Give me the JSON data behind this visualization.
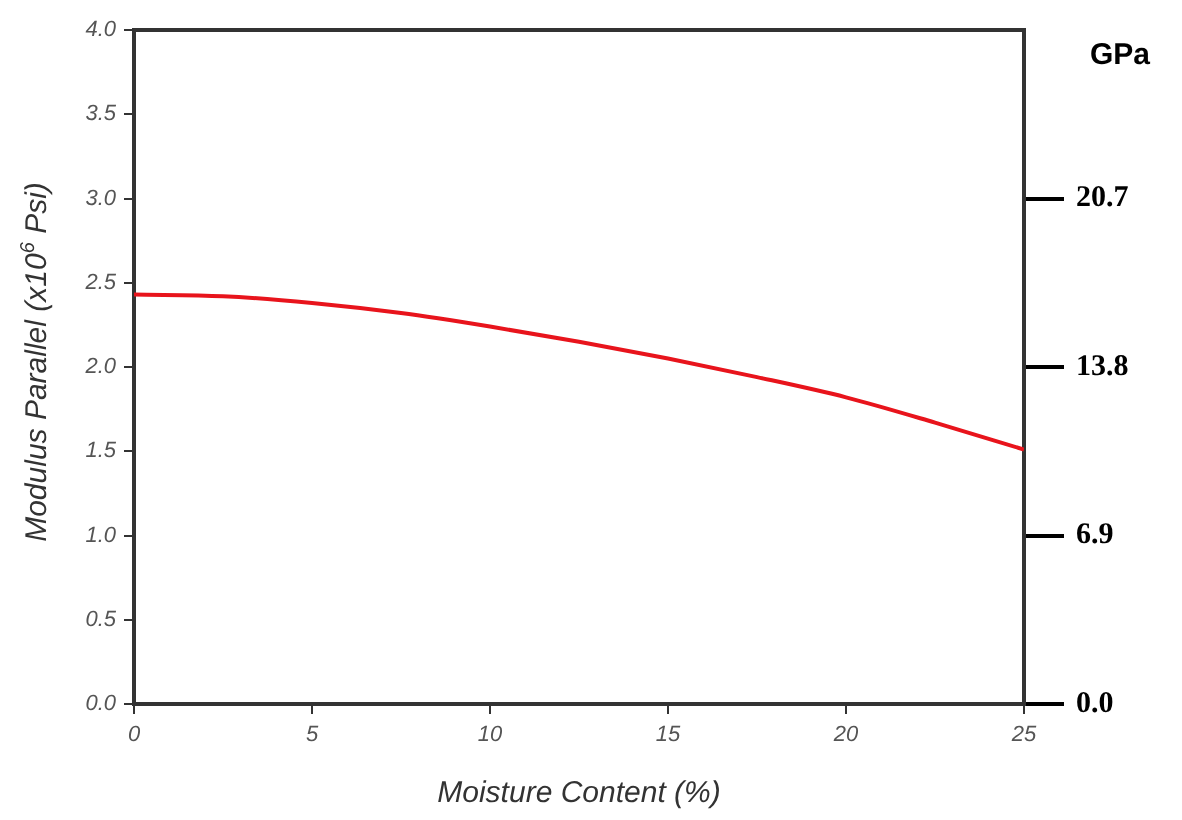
{
  "chart_data": {
    "type": "line",
    "xlabel": "Moisture Content (%)",
    "ylabel": "Modulus Parallel (x10$^{6}$ Psi)",
    "y2label": "GPa",
    "x": [
      0,
      2.5,
      5,
      7.5,
      10,
      12.5,
      15,
      17.5,
      20,
      22.5,
      25
    ],
    "series": [
      {
        "color": "#e8141c",
        "values": [
          2.43,
          2.42,
          2.38,
          2.32,
          2.24,
          2.15,
          2.05,
          1.94,
          1.82,
          1.67,
          1.51
        ]
      }
    ],
    "xlim": [
      0,
      25
    ],
    "xticks": [
      0,
      5,
      10,
      15,
      20,
      25
    ],
    "ylim": [
      0,
      4
    ],
    "yticks": [
      {
        "value": 0,
        "label": "0.0"
      },
      {
        "value": 0.5,
        "label": "0.5"
      },
      {
        "value": 1,
        "label": "1.0"
      },
      {
        "value": 1.5,
        "label": "1.5"
      },
      {
        "value": 2,
        "label": "2.0"
      },
      {
        "value": 2.5,
        "label": "2.5"
      },
      {
        "value": 3,
        "label": "3.0"
      },
      {
        "value": 3.5,
        "label": "3.5"
      },
      {
        "value": 4,
        "label": "4.0"
      }
    ],
    "y2lim": [
      0,
      27.6
    ],
    "y2ticks": [
      {
        "value": 0,
        "label": "0.0"
      },
      6.9,
      13.8,
      20.7
    ],
    "grid": false,
    "legend": false,
    "marker": "none",
    "line_style": "solid"
  }
}
